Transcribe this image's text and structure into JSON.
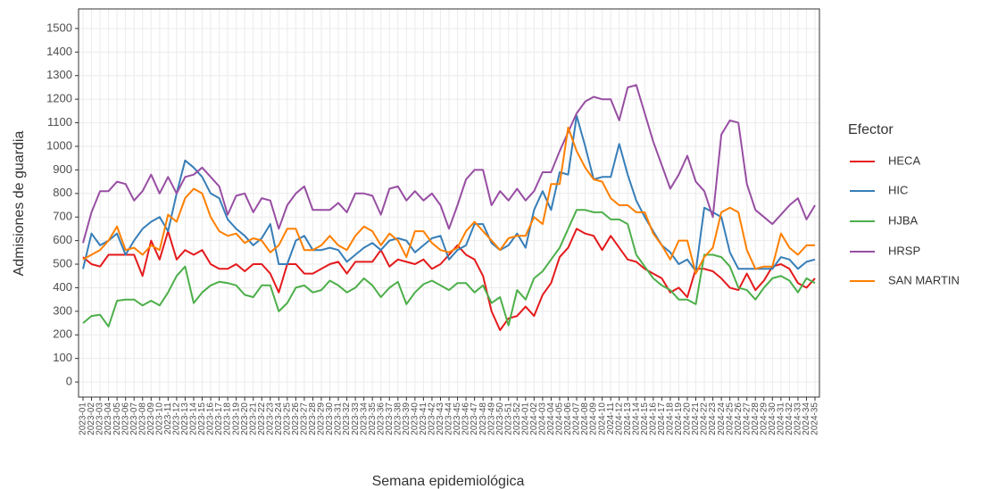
{
  "chart_data": {
    "type": "line",
    "x_label": "Semana epidemiológica",
    "y_label": "Admisiones de guardia",
    "legend_title": "Efector",
    "legend_position": "right",
    "grid": true,
    "ylim": [
      -64,
      1583
    ],
    "yticks": [
      0,
      100,
      200,
      300,
      400,
      500,
      600,
      700,
      800,
      900,
      1000,
      1100,
      1200,
      1300,
      1400,
      1500
    ],
    "categories": [
      "2023-01",
      "2023-02",
      "2023-03",
      "2023-04",
      "2023-05",
      "2023-06",
      "2023-07",
      "2023-08",
      "2023-09",
      "2023-10",
      "2023-11",
      "2023-12",
      "2023-13",
      "2023-14",
      "2023-15",
      "2023-16",
      "2023-17",
      "2023-18",
      "2023-19",
      "2023-20",
      "2023-21",
      "2023-22",
      "2023-23",
      "2023-24",
      "2023-25",
      "2023-26",
      "2023-27",
      "2023-28",
      "2023-29",
      "2023-30",
      "2023-31",
      "2023-32",
      "2023-33",
      "2023-34",
      "2023-35",
      "2023-36",
      "2023-37",
      "2023-38",
      "2023-39",
      "2023-40",
      "2023-41",
      "2023-42",
      "2023-43",
      "2023-44",
      "2023-45",
      "2023-46",
      "2023-47",
      "2023-48",
      "2023-49",
      "2023-50",
      "2023-51",
      "2023-52",
      "2024-01",
      "2024-02",
      "2024-03",
      "2024-04",
      "2024-05",
      "2024-06",
      "2024-07",
      "2024-08",
      "2024-09",
      "2024-10",
      "2024-11",
      "2024-12",
      "2024-13",
      "2024-14",
      "2024-15",
      "2024-16",
      "2024-17",
      "2024-18",
      "2024-19",
      "2024-20",
      "2024-21",
      "2024-22",
      "2024-23",
      "2024-24",
      "2024-25",
      "2024-26",
      "2024-27",
      "2024-28",
      "2024-29",
      "2024-30",
      "2024-31",
      "2024-32",
      "2024-33",
      "2024-34",
      "2024-35"
    ],
    "series": [
      {
        "name": "HECA",
        "color": "#e41a1c",
        "values": [
          530,
          500,
          490,
          540,
          540,
          540,
          540,
          450,
          600,
          520,
          640,
          520,
          560,
          540,
          560,
          500,
          480,
          480,
          500,
          470,
          500,
          500,
          460,
          380,
          500,
          500,
          460,
          460,
          480,
          500,
          510,
          460,
          510,
          510,
          510,
          560,
          490,
          520,
          510,
          500,
          520,
          480,
          500,
          540,
          580,
          540,
          520,
          450,
          300,
          220,
          270,
          280,
          320,
          280,
          370,
          420,
          530,
          570,
          650,
          630,
          620,
          560,
          620,
          570,
          520,
          510,
          480,
          460,
          440,
          380,
          400,
          360,
          480,
          480,
          470,
          440,
          400,
          390,
          460,
          390,
          430,
          490,
          500,
          480,
          420,
          400,
          440
        ]
      },
      {
        "name": "HIC",
        "color": "#377eb8",
        "values": [
          480,
          630,
          580,
          600,
          630,
          540,
          600,
          650,
          680,
          700,
          640,
          800,
          940,
          910,
          870,
          800,
          780,
          690,
          650,
          620,
          580,
          610,
          670,
          500,
          500,
          600,
          620,
          560,
          560,
          570,
          560,
          510,
          540,
          570,
          590,
          560,
          600,
          610,
          600,
          550,
          580,
          610,
          620,
          520,
          560,
          580,
          670,
          670,
          590,
          560,
          580,
          630,
          570,
          730,
          810,
          730,
          890,
          880,
          1130,
          1000,
          860,
          870,
          870,
          1010,
          880,
          770,
          700,
          640,
          580,
          550,
          500,
          520,
          470,
          740,
          720,
          700,
          550,
          480,
          480,
          480,
          480,
          480,
          530,
          520,
          480,
          510,
          520
        ]
      },
      {
        "name": "HJBA",
        "color": "#4daf4a",
        "values": [
          250,
          280,
          285,
          235,
          345,
          350,
          350,
          325,
          345,
          325,
          380,
          450,
          490,
          335,
          380,
          410,
          425,
          420,
          410,
          370,
          360,
          410,
          410,
          300,
          335,
          400,
          410,
          380,
          390,
          430,
          410,
          380,
          400,
          440,
          410,
          360,
          400,
          425,
          330,
          380,
          415,
          430,
          410,
          390,
          420,
          420,
          380,
          410,
          335,
          360,
          240,
          390,
          350,
          440,
          470,
          520,
          570,
          650,
          730,
          730,
          720,
          720,
          690,
          690,
          670,
          540,
          490,
          440,
          410,
          390,
          350,
          350,
          330,
          540,
          540,
          530,
          490,
          400,
          390,
          350,
          400,
          440,
          450,
          430,
          380,
          440,
          420
        ]
      },
      {
        "name": "HRSP",
        "color": "#984ea3",
        "values": [
          590,
          720,
          810,
          810,
          850,
          840,
          770,
          810,
          880,
          800,
          870,
          800,
          870,
          880,
          910,
          870,
          830,
          710,
          790,
          800,
          720,
          780,
          770,
          650,
          750,
          800,
          830,
          730,
          730,
          730,
          760,
          720,
          800,
          800,
          790,
          710,
          820,
          830,
          770,
          810,
          770,
          800,
          750,
          650,
          750,
          860,
          900,
          900,
          750,
          810,
          770,
          820,
          770,
          810,
          890,
          890,
          980,
          1060,
          1140,
          1190,
          1210,
          1200,
          1200,
          1110,
          1250,
          1260,
          1140,
          1020,
          920,
          820,
          880,
          960,
          850,
          810,
          700,
          1050,
          1110,
          1100,
          840,
          730,
          700,
          670,
          710,
          750,
          780,
          690,
          750
        ]
      },
      {
        "name": "SAN MARTIN",
        "color": "#ff7f00",
        "values": [
          520,
          540,
          560,
          600,
          660,
          560,
          570,
          540,
          580,
          560,
          710,
          680,
          780,
          820,
          800,
          700,
          640,
          620,
          630,
          590,
          610,
          600,
          550,
          580,
          650,
          650,
          560,
          560,
          580,
          620,
          580,
          560,
          620,
          660,
          640,
          580,
          630,
          600,
          530,
          640,
          640,
          590,
          560,
          550,
          570,
          640,
          680,
          640,
          600,
          560,
          610,
          620,
          620,
          700,
          670,
          840,
          840,
          1080,
          980,
          910,
          860,
          850,
          780,
          750,
          750,
          720,
          720,
          630,
          580,
          520,
          600,
          600,
          460,
          530,
          570,
          720,
          740,
          720,
          560,
          480,
          490,
          490,
          630,
          570,
          540,
          580,
          580
        ]
      }
    ]
  }
}
